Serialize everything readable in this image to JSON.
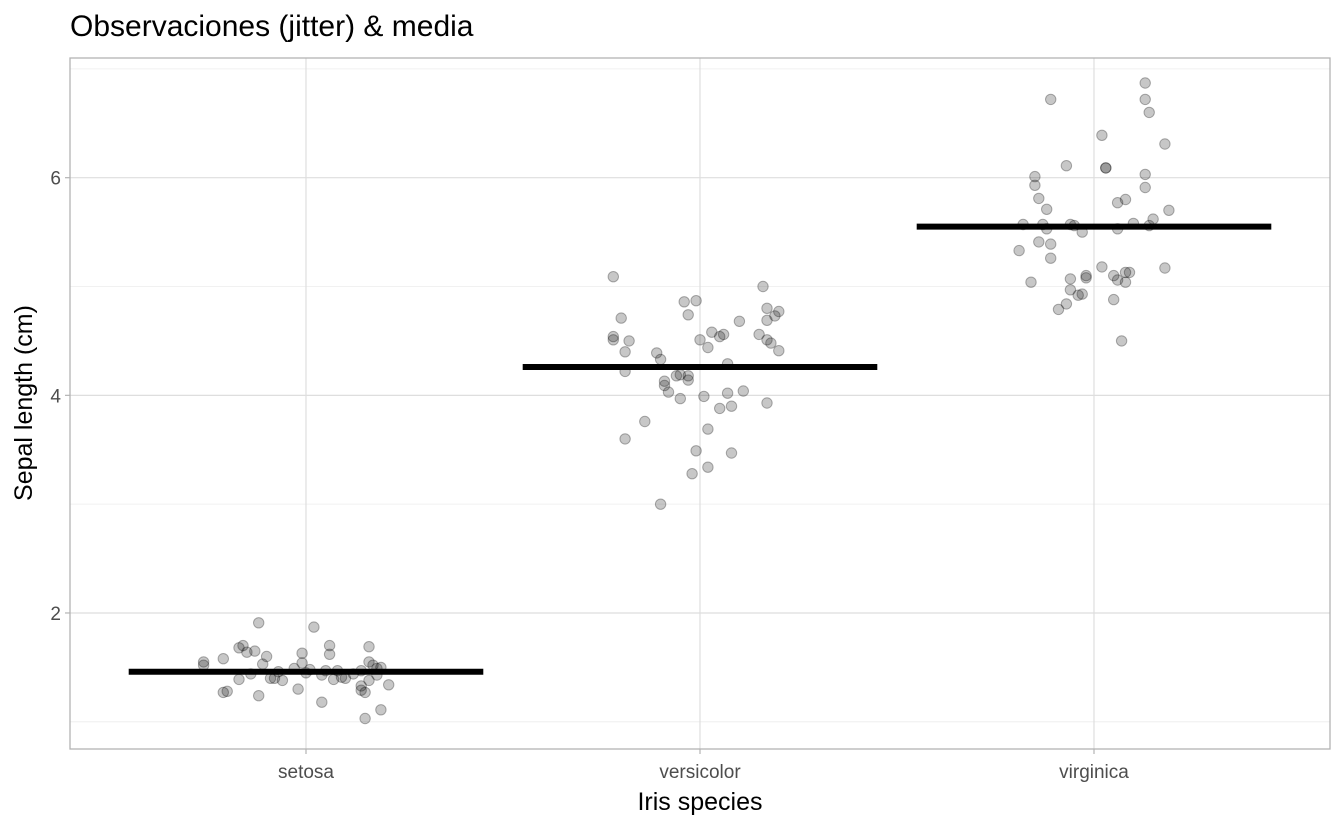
{
  "chart_data": {
    "type": "scatter",
    "title": "Observaciones (jitter) & media",
    "xlabel": "Iris species",
    "ylabel": "Sepal length (cm)",
    "categories": [
      "setosa",
      "versicolor",
      "virginica"
    ],
    "ylim": [
      0.75,
      7.1
    ],
    "yticks": [
      2,
      4,
      6
    ],
    "y_minor_ticks": [
      1,
      3,
      5,
      7
    ],
    "grid": true,
    "legend": "none",
    "point_color": "#000000",
    "point_opacity": 0.22,
    "mean_line_color": "#000000",
    "series": [
      {
        "name": "setosa",
        "category_index": 0,
        "mean": 1.46,
        "points": [
          {
            "dx": -0.26,
            "y": 1.55
          },
          {
            "dx": -0.26,
            "y": 1.52
          },
          {
            "dx": -0.21,
            "y": 1.58
          },
          {
            "dx": -0.21,
            "y": 1.27
          },
          {
            "dx": -0.2,
            "y": 1.28
          },
          {
            "dx": -0.17,
            "y": 1.39
          },
          {
            "dx": -0.17,
            "y": 1.68
          },
          {
            "dx": -0.16,
            "y": 1.7
          },
          {
            "dx": -0.15,
            "y": 1.64
          },
          {
            "dx": -0.14,
            "y": 1.44
          },
          {
            "dx": -0.13,
            "y": 1.65
          },
          {
            "dx": -0.12,
            "y": 1.24
          },
          {
            "dx": -0.12,
            "y": 1.91
          },
          {
            "dx": -0.11,
            "y": 1.53
          },
          {
            "dx": -0.1,
            "y": 1.6
          },
          {
            "dx": -0.09,
            "y": 1.4
          },
          {
            "dx": -0.08,
            "y": 1.4
          },
          {
            "dx": -0.06,
            "y": 1.38
          },
          {
            "dx": -0.02,
            "y": 1.3
          },
          {
            "dx": -0.01,
            "y": 1.63
          },
          {
            "dx": -0.01,
            "y": 1.54
          },
          {
            "dx": 0.0,
            "y": 1.45
          },
          {
            "dx": 0.01,
            "y": 1.48
          },
          {
            "dx": 0.02,
            "y": 1.87
          },
          {
            "dx": 0.04,
            "y": 1.18
          },
          {
            "dx": 0.04,
            "y": 1.43
          },
          {
            "dx": 0.05,
            "y": 1.47
          },
          {
            "dx": 0.06,
            "y": 1.7
          },
          {
            "dx": 0.06,
            "y": 1.62
          },
          {
            "dx": 0.07,
            "y": 1.39
          },
          {
            "dx": 0.08,
            "y": 1.47
          },
          {
            "dx": 0.09,
            "y": 1.41
          },
          {
            "dx": 0.1,
            "y": 1.4
          },
          {
            "dx": 0.14,
            "y": 1.47
          },
          {
            "dx": 0.14,
            "y": 1.29
          },
          {
            "dx": 0.14,
            "y": 1.33
          },
          {
            "dx": 0.15,
            "y": 1.27
          },
          {
            "dx": 0.15,
            "y": 1.03
          },
          {
            "dx": 0.16,
            "y": 1.38
          },
          {
            "dx": 0.16,
            "y": 1.69
          },
          {
            "dx": 0.16,
            "y": 1.55
          },
          {
            "dx": 0.17,
            "y": 1.52
          },
          {
            "dx": 0.18,
            "y": 1.49
          },
          {
            "dx": 0.18,
            "y": 1.43
          },
          {
            "dx": 0.19,
            "y": 1.5
          },
          {
            "dx": 0.19,
            "y": 1.11
          },
          {
            "dx": 0.21,
            "y": 1.34
          },
          {
            "dx": -0.07,
            "y": 1.46
          },
          {
            "dx": 0.12,
            "y": 1.44
          },
          {
            "dx": -0.03,
            "y": 1.49
          }
        ]
      },
      {
        "name": "versicolor",
        "category_index": 1,
        "mean": 4.26,
        "points": [
          {
            "dx": -0.22,
            "y": 5.09
          },
          {
            "dx": -0.22,
            "y": 4.51
          },
          {
            "dx": -0.22,
            "y": 4.54
          },
          {
            "dx": -0.2,
            "y": 4.71
          },
          {
            "dx": -0.19,
            "y": 4.22
          },
          {
            "dx": -0.19,
            "y": 3.6
          },
          {
            "dx": -0.19,
            "y": 4.4
          },
          {
            "dx": -0.18,
            "y": 4.5
          },
          {
            "dx": -0.14,
            "y": 3.76
          },
          {
            "dx": -0.11,
            "y": 4.39
          },
          {
            "dx": -0.1,
            "y": 4.33
          },
          {
            "dx": -0.1,
            "y": 3.0
          },
          {
            "dx": -0.09,
            "y": 4.09
          },
          {
            "dx": -0.09,
            "y": 4.13
          },
          {
            "dx": -0.08,
            "y": 4.03
          },
          {
            "dx": -0.06,
            "y": 4.18
          },
          {
            "dx": -0.05,
            "y": 3.97
          },
          {
            "dx": -0.05,
            "y": 4.19
          },
          {
            "dx": -0.04,
            "y": 4.86
          },
          {
            "dx": -0.03,
            "y": 4.14
          },
          {
            "dx": -0.03,
            "y": 4.74
          },
          {
            "dx": -0.02,
            "y": 3.28
          },
          {
            "dx": -0.01,
            "y": 3.49
          },
          {
            "dx": -0.01,
            "y": 4.87
          },
          {
            "dx": 0.0,
            "y": 4.51
          },
          {
            "dx": 0.01,
            "y": 3.99
          },
          {
            "dx": 0.02,
            "y": 3.34
          },
          {
            "dx": 0.02,
            "y": 4.44
          },
          {
            "dx": 0.02,
            "y": 3.69
          },
          {
            "dx": 0.03,
            "y": 4.58
          },
          {
            "dx": 0.05,
            "y": 4.54
          },
          {
            "dx": 0.05,
            "y": 3.88
          },
          {
            "dx": 0.06,
            "y": 4.56
          },
          {
            "dx": 0.07,
            "y": 4.02
          },
          {
            "dx": 0.07,
            "y": 4.29
          },
          {
            "dx": 0.08,
            "y": 3.47
          },
          {
            "dx": 0.08,
            "y": 3.9
          },
          {
            "dx": 0.1,
            "y": 4.68
          },
          {
            "dx": 0.11,
            "y": 4.04
          },
          {
            "dx": 0.15,
            "y": 4.56
          },
          {
            "dx": 0.16,
            "y": 5.0
          },
          {
            "dx": 0.17,
            "y": 4.8
          },
          {
            "dx": 0.17,
            "y": 4.51
          },
          {
            "dx": 0.17,
            "y": 3.93
          },
          {
            "dx": 0.17,
            "y": 4.69
          },
          {
            "dx": 0.18,
            "y": 4.48
          },
          {
            "dx": 0.19,
            "y": 4.73
          },
          {
            "dx": 0.2,
            "y": 4.77
          },
          {
            "dx": 0.2,
            "y": 4.41
          },
          {
            "dx": -0.03,
            "y": 4.18
          }
        ]
      },
      {
        "name": "virginica",
        "category_index": 2,
        "mean": 5.55,
        "points": [
          {
            "dx": -0.19,
            "y": 5.33
          },
          {
            "dx": -0.18,
            "y": 5.57
          },
          {
            "dx": -0.16,
            "y": 5.04
          },
          {
            "dx": -0.15,
            "y": 6.01
          },
          {
            "dx": -0.15,
            "y": 5.93
          },
          {
            "dx": -0.14,
            "y": 5.81
          },
          {
            "dx": -0.14,
            "y": 5.41
          },
          {
            "dx": -0.13,
            "y": 5.57
          },
          {
            "dx": -0.12,
            "y": 5.71
          },
          {
            "dx": -0.12,
            "y": 5.53
          },
          {
            "dx": -0.11,
            "y": 6.72
          },
          {
            "dx": -0.11,
            "y": 5.26
          },
          {
            "dx": -0.11,
            "y": 5.39
          },
          {
            "dx": -0.09,
            "y": 4.79
          },
          {
            "dx": -0.07,
            "y": 6.11
          },
          {
            "dx": -0.07,
            "y": 4.84
          },
          {
            "dx": -0.06,
            "y": 5.57
          },
          {
            "dx": -0.06,
            "y": 4.97
          },
          {
            "dx": -0.06,
            "y": 5.07
          },
          {
            "dx": -0.05,
            "y": 5.56
          },
          {
            "dx": -0.04,
            "y": 4.92
          },
          {
            "dx": -0.03,
            "y": 5.5
          },
          {
            "dx": -0.03,
            "y": 4.93
          },
          {
            "dx": -0.02,
            "y": 5.08
          },
          {
            "dx": -0.02,
            "y": 5.1
          },
          {
            "dx": 0.02,
            "y": 5.18
          },
          {
            "dx": 0.02,
            "y": 6.39
          },
          {
            "dx": 0.03,
            "y": 6.09
          },
          {
            "dx": 0.03,
            "y": 6.09
          },
          {
            "dx": 0.05,
            "y": 4.88
          },
          {
            "dx": 0.05,
            "y": 5.1
          },
          {
            "dx": 0.06,
            "y": 5.53
          },
          {
            "dx": 0.06,
            "y": 5.77
          },
          {
            "dx": 0.06,
            "y": 5.06
          },
          {
            "dx": 0.07,
            "y": 4.5
          },
          {
            "dx": 0.08,
            "y": 5.8
          },
          {
            "dx": 0.08,
            "y": 5.13
          },
          {
            "dx": 0.08,
            "y": 5.04
          },
          {
            "dx": 0.09,
            "y": 5.13
          },
          {
            "dx": 0.1,
            "y": 5.58
          },
          {
            "dx": 0.13,
            "y": 6.87
          },
          {
            "dx": 0.13,
            "y": 6.72
          },
          {
            "dx": 0.13,
            "y": 6.03
          },
          {
            "dx": 0.13,
            "y": 5.91
          },
          {
            "dx": 0.14,
            "y": 5.56
          },
          {
            "dx": 0.14,
            "y": 6.6
          },
          {
            "dx": 0.15,
            "y": 5.62
          },
          {
            "dx": 0.18,
            "y": 6.31
          },
          {
            "dx": 0.18,
            "y": 5.17
          },
          {
            "dx": 0.19,
            "y": 5.7
          }
        ]
      }
    ]
  }
}
